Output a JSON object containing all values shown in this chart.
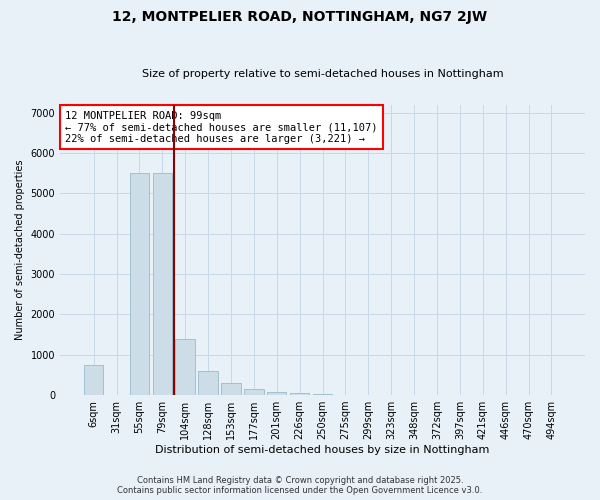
{
  "title": "12, MONTPELIER ROAD, NOTTINGHAM, NG7 2JW",
  "subtitle": "Size of property relative to semi-detached houses in Nottingham",
  "xlabel": "Distribution of semi-detached houses by size in Nottingham",
  "ylabel": "Number of semi-detached properties",
  "categories": [
    "6sqm",
    "31sqm",
    "55sqm",
    "79sqm",
    "104sqm",
    "128sqm",
    "153sqm",
    "177sqm",
    "201sqm",
    "226sqm",
    "250sqm",
    "275sqm",
    "299sqm",
    "323sqm",
    "348sqm",
    "372sqm",
    "397sqm",
    "421sqm",
    "446sqm",
    "470sqm",
    "494sqm"
  ],
  "values": [
    750,
    10,
    5500,
    5500,
    1400,
    600,
    300,
    150,
    75,
    50,
    20,
    5,
    3,
    2,
    1,
    1,
    1,
    1,
    1,
    1,
    1
  ],
  "bar_color": "#ccdde8",
  "bar_edge_color": "#99bbcc",
  "grid_color": "#c8d8e8",
  "background_color": "#e8f0f8",
  "prop_line_index": 3.5,
  "annotation_text": "12 MONTPELIER ROAD: 99sqm\n← 77% of semi-detached houses are smaller (11,107)\n22% of semi-detached houses are larger (3,221) →",
  "footer1": "Contains HM Land Registry data © Crown copyright and database right 2025.",
  "footer2": "Contains public sector information licensed under the Open Government Licence v3.0.",
  "ylim": [
    0,
    7200
  ],
  "yticks": [
    0,
    1000,
    2000,
    3000,
    4000,
    5000,
    6000,
    7000
  ]
}
